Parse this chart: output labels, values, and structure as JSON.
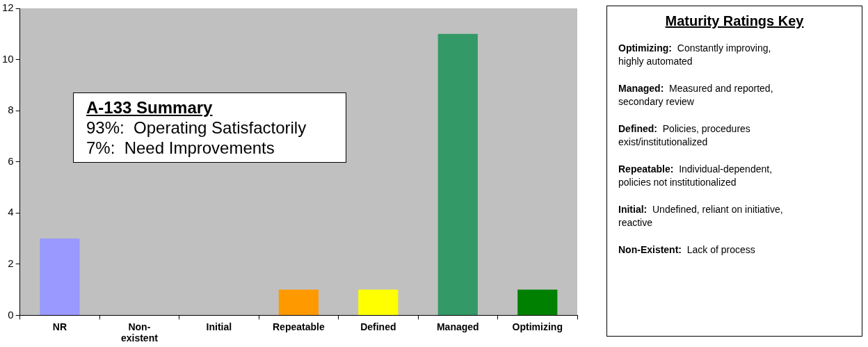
{
  "chart_data": {
    "type": "bar",
    "categories": [
      "NR",
      "Non-existent",
      "Initial",
      "Repeatable",
      "Defined",
      "Managed",
      "Optimizing"
    ],
    "values": [
      3,
      0,
      0,
      1,
      1,
      11,
      1
    ],
    "colors": [
      "#9999ff",
      "#c0c0c0",
      "#c0c0c0",
      "#ff9900",
      "#ffff00",
      "#339966",
      "#008000"
    ],
    "ylim": [
      0,
      12
    ],
    "yticks": [
      0,
      2,
      4,
      6,
      8,
      10,
      12
    ],
    "annotations": [
      "A-133 Summary",
      "93%:  Operating Satisfactorily",
      "7%:  Need Improvements",
      "Maturity Ratings Key",
      "Optimizing:  Constantly improving, highly automated",
      "Managed:  Measured and reported, secondary review",
      "Defined:  Policies, procedures exist/institutionalized",
      "Repeatable:  Individual-dependent, policies not institutionalized",
      "Initial:  Undefined, reliant on initiative, reactive",
      "Non-Existent:  Lack of process"
    ]
  }
}
